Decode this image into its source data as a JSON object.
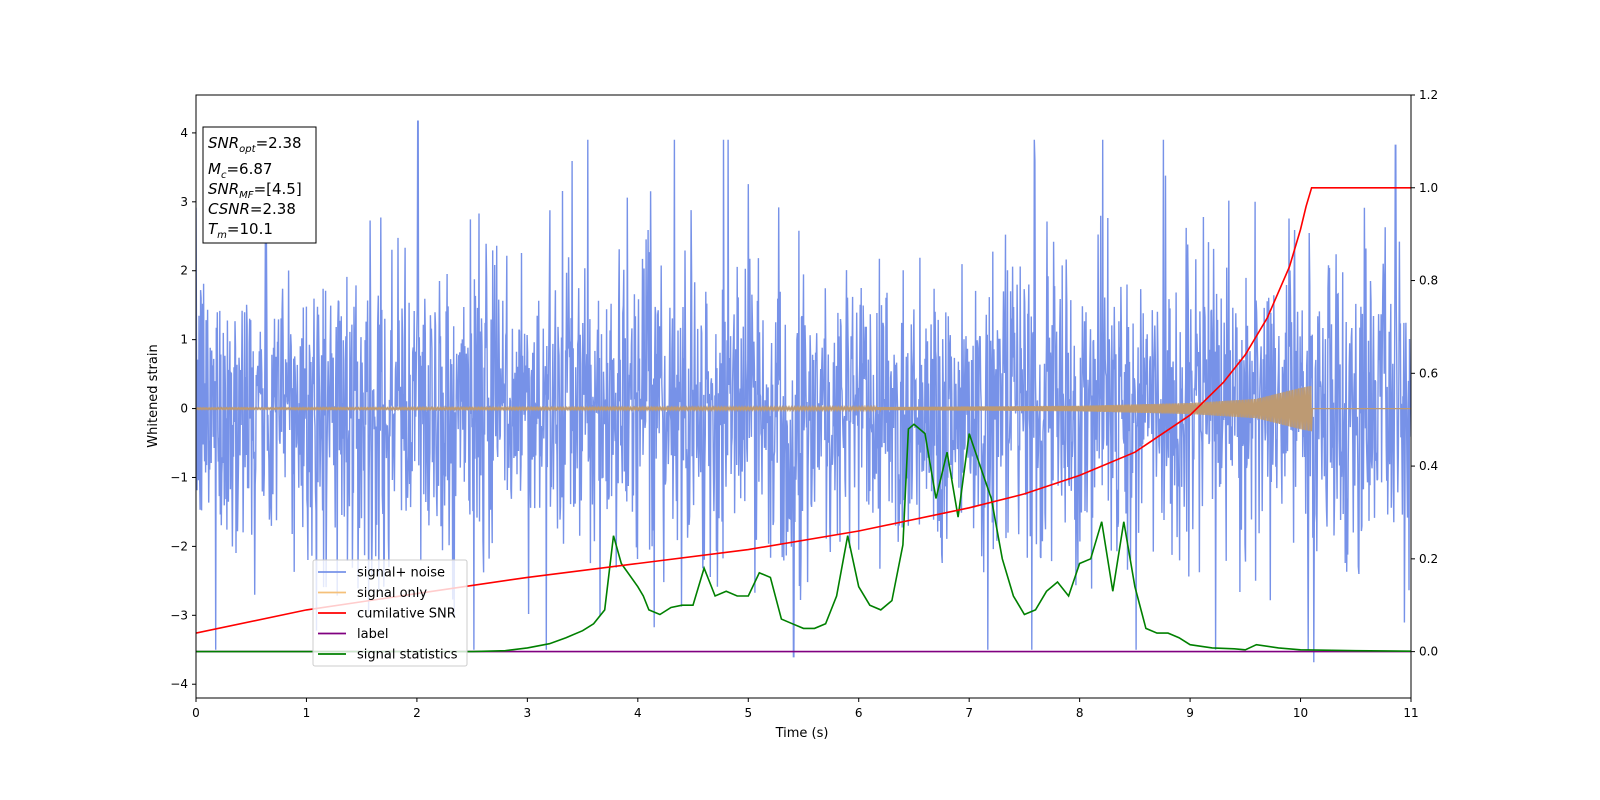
{
  "chart_data": {
    "type": "line",
    "xlabel": "Time (s)",
    "ylabel": "Whitened strain",
    "xlim": [
      0,
      11
    ],
    "ylim_left": [
      -4.2,
      4.55
    ],
    "ylim_right": [
      -0.1,
      1.2
    ],
    "xticks": [
      "0",
      "1",
      "2",
      "3",
      "4",
      "5",
      "6",
      "7",
      "8",
      "9",
      "10",
      "11"
    ],
    "yticks_left": [
      "−4",
      "−3",
      "−2",
      "−1",
      "0",
      "1",
      "2",
      "3",
      "4"
    ],
    "yticks_right": [
      "0.0",
      "0.2",
      "0.4",
      "0.6",
      "0.8",
      "1.0",
      "1.2"
    ],
    "info_box": [
      "SNR_opt=2.38",
      "M_c=6.87",
      "SNR_MF=[4.5]",
      "CSNR=2.38",
      "T_m=10.1"
    ],
    "legend_position": "lower-left",
    "series": [
      {
        "name": "signal+ noise",
        "axis": "left",
        "color": "#7792e8",
        "description_level": "noise band approximately between -2.0 and 2.4 with spikes up to 4.17 at x=2.0 and down to -3.6 at x=5.4"
      },
      {
        "name": "signal only",
        "axis": "left",
        "color": "#f5c07a",
        "chirp_amplitude": [
          [
            0,
            0.01
          ],
          [
            6,
            0.02
          ],
          [
            8,
            0.04
          ],
          [
            9,
            0.08
          ],
          [
            9.6,
            0.14
          ],
          [
            10.0,
            0.3
          ],
          [
            10.1,
            0.33
          ],
          [
            10.1,
            0
          ]
        ]
      },
      {
        "name": "cumilative SNR",
        "axis": "right",
        "color": "#ff0000",
        "x": [
          0,
          1,
          2,
          3,
          4,
          5,
          6,
          7,
          7.5,
          8,
          8.5,
          9,
          9.3,
          9.5,
          9.7,
          9.9,
          10.0,
          10.05,
          10.1,
          11
        ],
        "y": [
          0.04,
          0.09,
          0.125,
          0.16,
          0.19,
          0.22,
          0.26,
          0.31,
          0.34,
          0.38,
          0.43,
          0.51,
          0.58,
          0.64,
          0.72,
          0.83,
          0.91,
          0.96,
          1.0,
          1.0
        ]
      },
      {
        "name": "label",
        "axis": "right",
        "color": "#800080",
        "x": [
          0,
          11
        ],
        "y": [
          0,
          0
        ]
      },
      {
        "name": "signal statistics",
        "axis": "right",
        "color": "#008000",
        "x": [
          0,
          0.5,
          1,
          1.5,
          2,
          2.5,
          2.8,
          3.0,
          3.2,
          3.35,
          3.5,
          3.6,
          3.7,
          3.78,
          3.85,
          4.0,
          4.05,
          4.1,
          4.2,
          4.3,
          4.4,
          4.5,
          4.6,
          4.7,
          4.8,
          4.9,
          5.0,
          5.1,
          5.2,
          5.3,
          5.4,
          5.5,
          5.6,
          5.7,
          5.8,
          5.9,
          6.0,
          6.1,
          6.2,
          6.3,
          6.4,
          6.45,
          6.5,
          6.6,
          6.7,
          6.8,
          6.9,
          7.0,
          7.1,
          7.2,
          7.3,
          7.4,
          7.5,
          7.6,
          7.7,
          7.8,
          7.9,
          8.0,
          8.1,
          8.2,
          8.3,
          8.4,
          8.5,
          8.6,
          8.7,
          8.8,
          8.9,
          9.0,
          9.2,
          9.4,
          9.5,
          9.6,
          9.8,
          10.0,
          10.5,
          11
        ],
        "y": [
          0,
          0,
          0,
          0,
          0,
          0,
          0.002,
          0.008,
          0.017,
          0.03,
          0.045,
          0.06,
          0.09,
          0.25,
          0.19,
          0.14,
          0.12,
          0.09,
          0.08,
          0.095,
          0.1,
          0.1,
          0.18,
          0.12,
          0.13,
          0.12,
          0.12,
          0.17,
          0.16,
          0.07,
          0.06,
          0.05,
          0.05,
          0.06,
          0.12,
          0.25,
          0.14,
          0.1,
          0.09,
          0.11,
          0.23,
          0.48,
          0.49,
          0.47,
          0.33,
          0.43,
          0.29,
          0.47,
          0.4,
          0.33,
          0.2,
          0.12,
          0.08,
          0.09,
          0.13,
          0.15,
          0.12,
          0.19,
          0.2,
          0.28,
          0.13,
          0.28,
          0.14,
          0.05,
          0.04,
          0.04,
          0.03,
          0.015,
          0.008,
          0.006,
          0.004,
          0.015,
          0.008,
          0.004,
          0.002,
          0.001
        ]
      }
    ]
  }
}
